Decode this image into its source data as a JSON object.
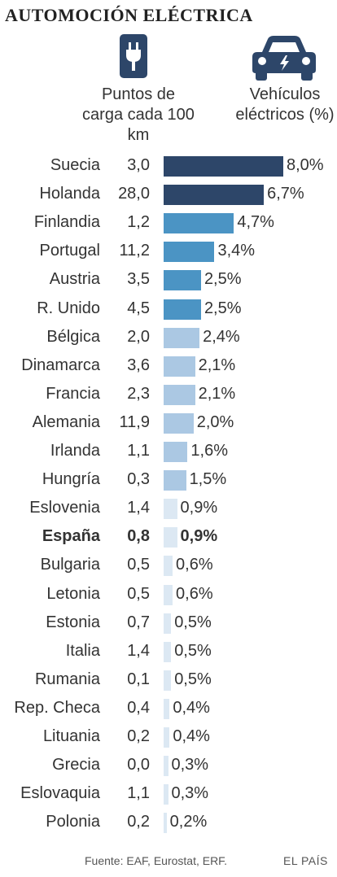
{
  "title": "AUTOMOCIÓN ELÉCTRICA",
  "headers": {
    "charging": "Puntos de carga cada 100 km",
    "ev": "Vehículos eléctricos (%)"
  },
  "icons": {
    "charging": "plug-icon",
    "ev": "car-icon"
  },
  "colors": {
    "dark": "#2d4669",
    "mid": "#4b94c4",
    "light": "#abc8e3",
    "pale": "#dce8f3",
    "text": "#333333"
  },
  "footer": {
    "source": "Fuente: EAF, Eurostat, ERF.",
    "brand": "EL PAÍS"
  },
  "chart_data": {
    "type": "bar",
    "orientation": "horizontal",
    "categories": [
      "Suecia",
      "Holanda",
      "Finlandia",
      "Portugal",
      "Austria",
      "R. Unido",
      "Bélgica",
      "Dinamarca",
      "Francia",
      "Alemania",
      "Irlanda",
      "Hungría",
      "Eslovenia",
      "España",
      "Bulgaria",
      "Letonia",
      "Estonia",
      "Italia",
      "Rumania",
      "Rep. Checa",
      "Lituania",
      "Grecia",
      "Eslovaquia",
      "Polonia"
    ],
    "points_labels": [
      "3,0",
      "28,0",
      "1,2",
      "11,2",
      "3,5",
      "4,5",
      "2,0",
      "3,6",
      "2,3",
      "11,9",
      "1,1",
      "0,3",
      "1,4",
      "0,8",
      "0,5",
      "0,5",
      "0,7",
      "1,4",
      "0,1",
      "0,4",
      "0,2",
      "0,0",
      "1,1",
      "0,2"
    ],
    "values": [
      8.0,
      6.7,
      4.7,
      3.4,
      2.5,
      2.5,
      2.4,
      2.1,
      2.1,
      2.0,
      1.6,
      1.5,
      0.9,
      0.9,
      0.6,
      0.6,
      0.5,
      0.5,
      0.5,
      0.4,
      0.4,
      0.3,
      0.3,
      0.2
    ],
    "value_labels": [
      "8,0%",
      "6,7%",
      "4,7%",
      "3,4%",
      "2,5%",
      "2,5%",
      "2,4%",
      "2,1%",
      "2,1%",
      "2,0%",
      "1,6%",
      "1,5%",
      "0,9%",
      "0,9%",
      "0,6%",
      "0,6%",
      "0,5%",
      "0,5%",
      "0,5%",
      "0,4%",
      "0,4%",
      "0,3%",
      "0,3%",
      "0,2%"
    ],
    "highlight": "España",
    "xlim": [
      0,
      8
    ]
  }
}
